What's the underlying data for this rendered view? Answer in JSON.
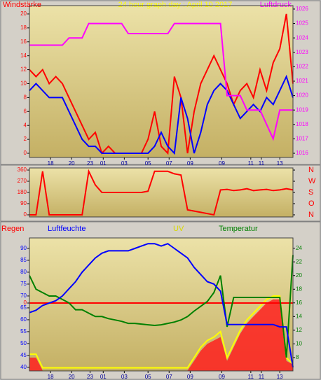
{
  "chart_data": [
    {
      "type": "line",
      "title": "24 hour graph day : April 10 2017",
      "y_label": "Windstärke",
      "y2_label": "Luftdruck",
      "x": [
        0,
        2.5,
        5,
        7.5,
        10,
        12.5,
        15,
        17.5,
        20,
        22.5,
        25,
        27.5,
        30,
        32.5,
        35,
        37.5,
        40,
        42.5,
        45,
        47.5,
        50,
        52.5,
        55,
        57.5,
        60,
        62.5,
        65,
        67.5,
        70,
        72.5,
        75,
        77.5,
        80,
        82.5,
        85,
        87.5,
        90,
        92.5,
        95,
        97.5,
        100
      ],
      "xlim": [
        0,
        100
      ],
      "xticks": [
        {
          "value": 8,
          "label": "18"
        },
        {
          "value": 16,
          "label": "20"
        },
        {
          "value": 23,
          "label": "23"
        },
        {
          "value": 28,
          "label": "01"
        },
        {
          "value": 36,
          "label": "03"
        },
        {
          "value": 45,
          "label": "05"
        },
        {
          "value": 53,
          "label": "07"
        },
        {
          "value": 61,
          "label": "09"
        },
        {
          "value": 73,
          "label": "09"
        },
        {
          "value": 84,
          "label": "11"
        },
        {
          "value": 88,
          "label": "11"
        },
        {
          "value": 95,
          "label": "13"
        }
      ],
      "ylim": [
        -0.6,
        21.2
      ],
      "yticks": [
        0,
        2,
        4,
        6,
        8,
        10,
        12,
        14,
        16,
        18,
        20
      ],
      "y2lim": [
        1015.71,
        1026.24
      ],
      "y2ticks": [
        1016,
        1017,
        1018,
        1019,
        1020,
        1021,
        1022,
        1023,
        1024,
        1025,
        1026
      ],
      "series": [
        {
          "color": "#ff0000",
          "values": [
            12,
            11,
            12,
            10,
            11,
            10,
            8,
            6,
            4,
            2,
            3,
            0,
            1,
            0,
            0,
            0,
            0,
            0,
            2,
            6,
            1,
            0,
            11,
            8,
            0,
            6,
            10,
            12,
            14,
            12,
            10,
            7,
            9,
            10,
            8,
            12,
            9,
            13,
            15,
            20,
            10
          ]
        },
        {
          "color": "#0000ff",
          "values": [
            9,
            10,
            9,
            8,
            8,
            8,
            6,
            4,
            2,
            1,
            1,
            0,
            0,
            0,
            0,
            0,
            0,
            0,
            0,
            1,
            3,
            1,
            0,
            8,
            5,
            0,
            3,
            7,
            9,
            10,
            9,
            7,
            5,
            6,
            7,
            6,
            8,
            7,
            9,
            11,
            8
          ]
        },
        {
          "color": "#ff00ff",
          "axis": "y2",
          "values": [
            1023.5,
            1023.5,
            1023.5,
            1023.5,
            1023.5,
            1023.5,
            1024,
            1024,
            1024,
            1025,
            1025,
            1025,
            1025,
            1025,
            1025,
            1024.3,
            1024.3,
            1024.3,
            1024.3,
            1024.3,
            1024.3,
            1024.3,
            1025,
            1025,
            1025,
            1025,
            1025,
            1025,
            1025,
            1025,
            1020,
            1020,
            1020,
            1019,
            1019,
            1019,
            1018,
            1017,
            1019,
            1019,
            1019
          ]
        }
      ]
    },
    {
      "type": "line",
      "x": [
        0,
        2.5,
        5,
        7.5,
        10,
        12.5,
        15,
        17.5,
        20,
        22.5,
        25,
        27.5,
        30,
        32.5,
        35,
        37.5,
        40,
        42.5,
        45,
        47.5,
        50,
        52.5,
        55,
        57.5,
        60,
        62.5,
        65,
        67.5,
        70,
        72.5,
        75,
        77.5,
        80,
        82.5,
        85,
        87.5,
        90,
        92.5,
        95,
        97.5,
        100
      ],
      "xlim": [
        0,
        100
      ],
      "ylim": [
        -17,
        377
      ],
      "yticks": [
        0,
        90,
        180,
        270,
        360
      ],
      "y2lim": [
        -17,
        377
      ],
      "y2ticks": [
        {
          "value": 360,
          "label": "N"
        },
        {
          "value": 270,
          "label": "W"
        },
        {
          "value": 180,
          "label": "S"
        },
        {
          "value": 90,
          "label": "O"
        },
        {
          "value": 0,
          "label": "N"
        }
      ],
      "series": [
        {
          "color": "#ff0000",
          "values": [
            0,
            0,
            350,
            0,
            0,
            0,
            0,
            0,
            0,
            350,
            240,
            180,
            180,
            180,
            180,
            180,
            180,
            180,
            190,
            350,
            350,
            350,
            330,
            320,
            40,
            30,
            20,
            10,
            0,
            200,
            205,
            195,
            200,
            210,
            195,
            200,
            205,
            195,
            200,
            210,
            200
          ]
        }
      ]
    },
    {
      "type": "line",
      "x": [
        0,
        2.5,
        5,
        7.5,
        10,
        12.5,
        15,
        17.5,
        20,
        22.5,
        25,
        27.5,
        30,
        32.5,
        35,
        37.5,
        40,
        42.5,
        45,
        47.5,
        50,
        52.5,
        55,
        57.5,
        60,
        62.5,
        65,
        67.5,
        70,
        72.5,
        75,
        77.5,
        80,
        82.5,
        85,
        87.5,
        90,
        92.5,
        95,
        97.5,
        100
      ],
      "xlim": [
        0,
        100
      ],
      "xticks": [
        {
          "value": 8,
          "label": "18"
        },
        {
          "value": 16,
          "label": "20"
        },
        {
          "value": 23,
          "label": "23"
        },
        {
          "value": 28,
          "label": "01"
        },
        {
          "value": 36,
          "label": "03"
        },
        {
          "value": 45,
          "label": "05"
        },
        {
          "value": 53,
          "label": "07"
        },
        {
          "value": 61,
          "label": "09"
        },
        {
          "value": 73,
          "label": "09"
        },
        {
          "value": 84,
          "label": "11"
        },
        {
          "value": 88,
          "label": "11"
        },
        {
          "value": 95,
          "label": "13"
        }
      ],
      "ylim": [
        38.5,
        94.4
      ],
      "yticks": [
        40,
        45,
        50,
        55,
        60,
        65,
        70,
        75,
        80,
        85,
        90
      ],
      "y2lim": [
        6.05,
        25.5
      ],
      "y2ticks": [
        8,
        10,
        12,
        14,
        16,
        18,
        20,
        22,
        24
      ],
      "y3lim": [
        -1,
        0.959
      ],
      "y3ticks": [
        0
      ],
      "series": [
        {
          "color": "#ff2020",
          "axis": "y2",
          "fill": true,
          "values": [
            8,
            8,
            6.1,
            6.1,
            6.1,
            6.1,
            6.1,
            6.1,
            6.1,
            6.1,
            6.1,
            6.1,
            6.1,
            6.1,
            6.1,
            6.1,
            6.1,
            6.1,
            6.1,
            6.1,
            6.1,
            6.1,
            6.1,
            6.1,
            6.1,
            7.5,
            9,
            10,
            10.5,
            11,
            7.5,
            9.5,
            11.5,
            13,
            14,
            15,
            16,
            16.5,
            16.5,
            7.5,
            7
          ]
        },
        {
          "name": "UV",
          "color": "#ffff00",
          "axis": "y2",
          "values": [
            8.5,
            8.5,
            6.5,
            6.5,
            6.5,
            6.5,
            6.5,
            6.5,
            6.5,
            6.5,
            6.5,
            6.5,
            6.5,
            6.5,
            6.5,
            6.5,
            6.5,
            6.5,
            6.5,
            6.5,
            6.5,
            6.5,
            6.5,
            6.5,
            6.5,
            8,
            9.5,
            10.5,
            11,
            11.8,
            8,
            10,
            12,
            13.5,
            14.5,
            15.5,
            16.5,
            17,
            17,
            8,
            7
          ]
        },
        {
          "name": "Regen",
          "color": "#ff0000",
          "axis": "y3",
          "values": [
            0,
            0,
            0,
            0,
            0,
            0,
            0,
            0,
            0,
            0,
            0,
            0,
            0,
            0,
            0,
            0,
            0,
            0,
            0,
            0,
            0,
            0,
            0,
            0,
            0,
            0,
            0,
            0,
            0,
            0,
            0,
            0,
            0,
            0,
            0,
            0,
            0,
            0,
            0,
            0,
            0
          ]
        },
        {
          "name": "Temperatur",
          "color": "#008000",
          "axis": "y2",
          "values": [
            20,
            18,
            17.5,
            17,
            17,
            16.5,
            16,
            15,
            15,
            14.5,
            14,
            14,
            13.7,
            13.5,
            13.3,
            13,
            13,
            12.9,
            12.8,
            12.7,
            12.8,
            13,
            13.2,
            13.5,
            14,
            14.8,
            15.5,
            16.2,
            17.5,
            20,
            12.5,
            16.8,
            16.8,
            16.8,
            16.8,
            16.8,
            16.8,
            16.8,
            16.8,
            8,
            23
          ]
        },
        {
          "name": "Luftfeuchte",
          "color": "#0000ff",
          "values": [
            63,
            64,
            66,
            67,
            68,
            70,
            73,
            76,
            80,
            83,
            86,
            88,
            89,
            89,
            89,
            89,
            90,
            91,
            92,
            92,
            91,
            92,
            90,
            88,
            86,
            82,
            79,
            76,
            75,
            72,
            58,
            58,
            58,
            58,
            58,
            58,
            58,
            58,
            57,
            57,
            40
          ]
        }
      ]
    }
  ]
}
